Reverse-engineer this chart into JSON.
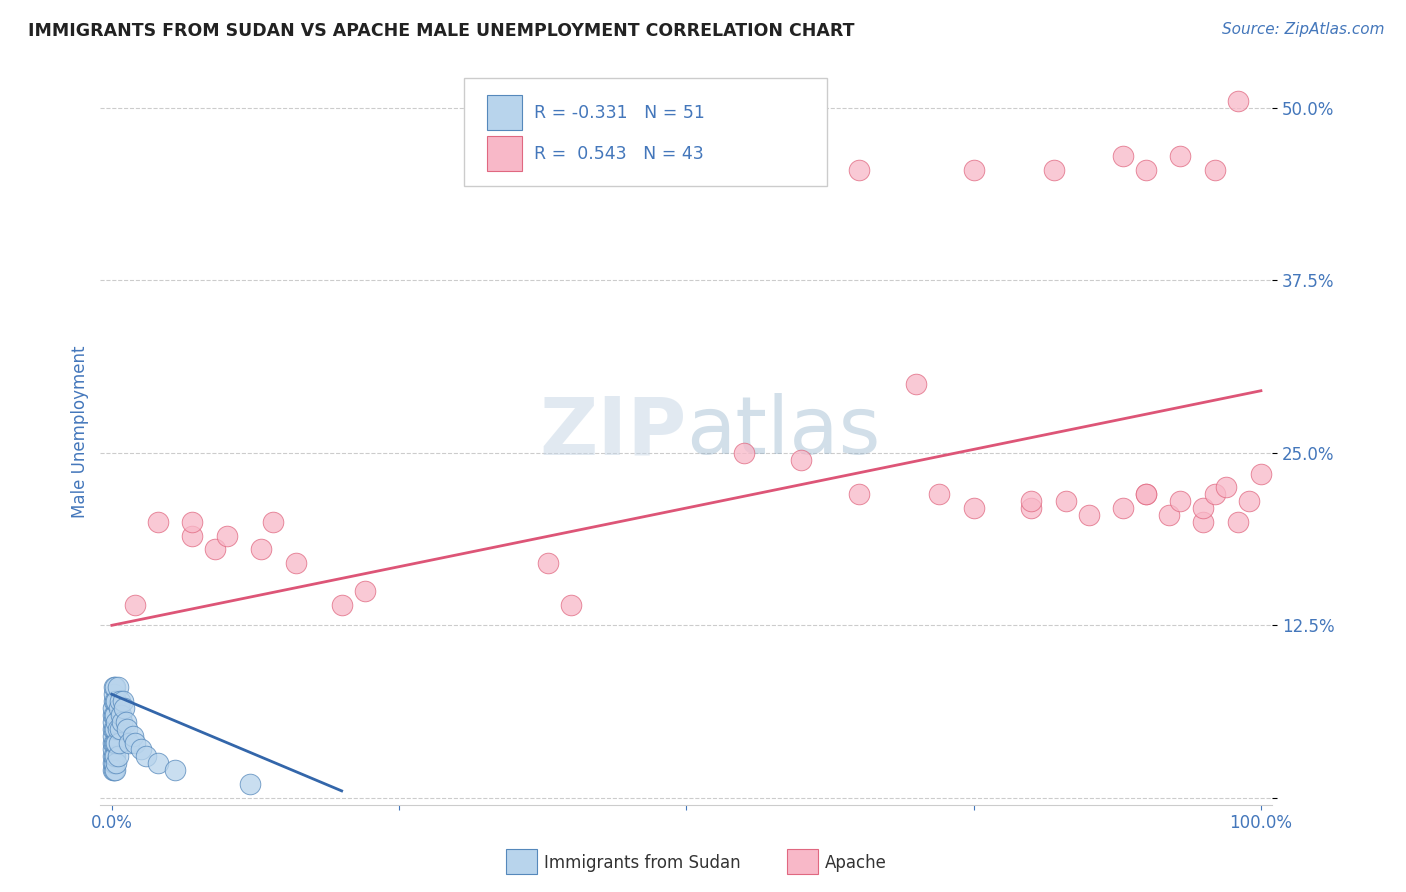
{
  "title": "IMMIGRANTS FROM SUDAN VS APACHE MALE UNEMPLOYMENT CORRELATION CHART",
  "source": "Source: ZipAtlas.com",
  "ylabel": "Male Unemployment",
  "legend_R": [
    -0.331,
    0.543
  ],
  "legend_N": [
    51,
    43
  ],
  "blue_fill": "#b8d4ec",
  "blue_edge": "#5588bb",
  "pink_fill": "#f8b8c8",
  "pink_edge": "#e06880",
  "blue_line_color": "#3366aa",
  "pink_line_color": "#dd5577",
  "watermark_color": "#c8d8e8",
  "title_color": "#222222",
  "source_color": "#4477bb",
  "tick_color": "#4477bb",
  "legend_text_color": "#4477bb",
  "grid_color": "#cccccc",
  "background_color": "#ffffff",
  "blue_dots_x": [
    0.001,
    0.001,
    0.001,
    0.001,
    0.001,
    0.001,
    0.001,
    0.001,
    0.001,
    0.001,
    0.002,
    0.002,
    0.002,
    0.002,
    0.002,
    0.002,
    0.002,
    0.002,
    0.002,
    0.003,
    0.003,
    0.003,
    0.003,
    0.003,
    0.003,
    0.003,
    0.004,
    0.004,
    0.004,
    0.004,
    0.005,
    0.005,
    0.005,
    0.006,
    0.006,
    0.007,
    0.007,
    0.008,
    0.009,
    0.01,
    0.011,
    0.012,
    0.013,
    0.015,
    0.018,
    0.02,
    0.025,
    0.03,
    0.04,
    0.055,
    0.12
  ],
  "blue_dots_y": [
    0.02,
    0.025,
    0.03,
    0.035,
    0.04,
    0.045,
    0.05,
    0.055,
    0.06,
    0.065,
    0.02,
    0.025,
    0.03,
    0.04,
    0.05,
    0.06,
    0.07,
    0.075,
    0.08,
    0.02,
    0.03,
    0.04,
    0.05,
    0.06,
    0.07,
    0.08,
    0.025,
    0.04,
    0.055,
    0.07,
    0.03,
    0.05,
    0.08,
    0.04,
    0.065,
    0.05,
    0.07,
    0.06,
    0.055,
    0.07,
    0.065,
    0.055,
    0.05,
    0.04,
    0.045,
    0.04,
    0.035,
    0.03,
    0.025,
    0.02,
    0.01
  ],
  "pink_dots_x": [
    0.02,
    0.04,
    0.07,
    0.07,
    0.09,
    0.1,
    0.13,
    0.14,
    0.16,
    0.2,
    0.22,
    0.38,
    0.4,
    0.55,
    0.6,
    0.65,
    0.7,
    0.72,
    0.75,
    0.8,
    0.8,
    0.83,
    0.85,
    0.88,
    0.9,
    0.9,
    0.92,
    0.93,
    0.95,
    0.95,
    0.96,
    0.97,
    0.98,
    0.99,
    1.0,
    0.65,
    0.75,
    0.82,
    0.88,
    0.9,
    0.93,
    0.96,
    0.98
  ],
  "pink_dots_y": [
    0.14,
    0.2,
    0.19,
    0.2,
    0.18,
    0.19,
    0.18,
    0.2,
    0.17,
    0.14,
    0.15,
    0.17,
    0.14,
    0.25,
    0.245,
    0.22,
    0.3,
    0.22,
    0.21,
    0.21,
    0.215,
    0.215,
    0.205,
    0.21,
    0.22,
    0.22,
    0.205,
    0.215,
    0.2,
    0.21,
    0.22,
    0.225,
    0.2,
    0.215,
    0.235,
    0.455,
    0.455,
    0.455,
    0.465,
    0.455,
    0.465,
    0.455,
    0.505
  ],
  "blue_line_x": [
    0.0,
    0.2
  ],
  "blue_line_y": [
    0.075,
    0.005
  ],
  "pink_line_x": [
    0.0,
    1.0
  ],
  "pink_line_y": [
    0.125,
    0.295
  ],
  "xlim": [
    -0.01,
    1.01
  ],
  "ylim": [
    -0.005,
    0.535
  ],
  "yticks": [
    0.0,
    0.125,
    0.25,
    0.375,
    0.5
  ],
  "ytick_labels": [
    "",
    "12.5%",
    "25.0%",
    "37.5%",
    "50.0%"
  ],
  "xtick_left": "0.0%",
  "xtick_right": "100.0%",
  "legend_bottom_labels": [
    "Immigrants from Sudan",
    "Apache"
  ]
}
